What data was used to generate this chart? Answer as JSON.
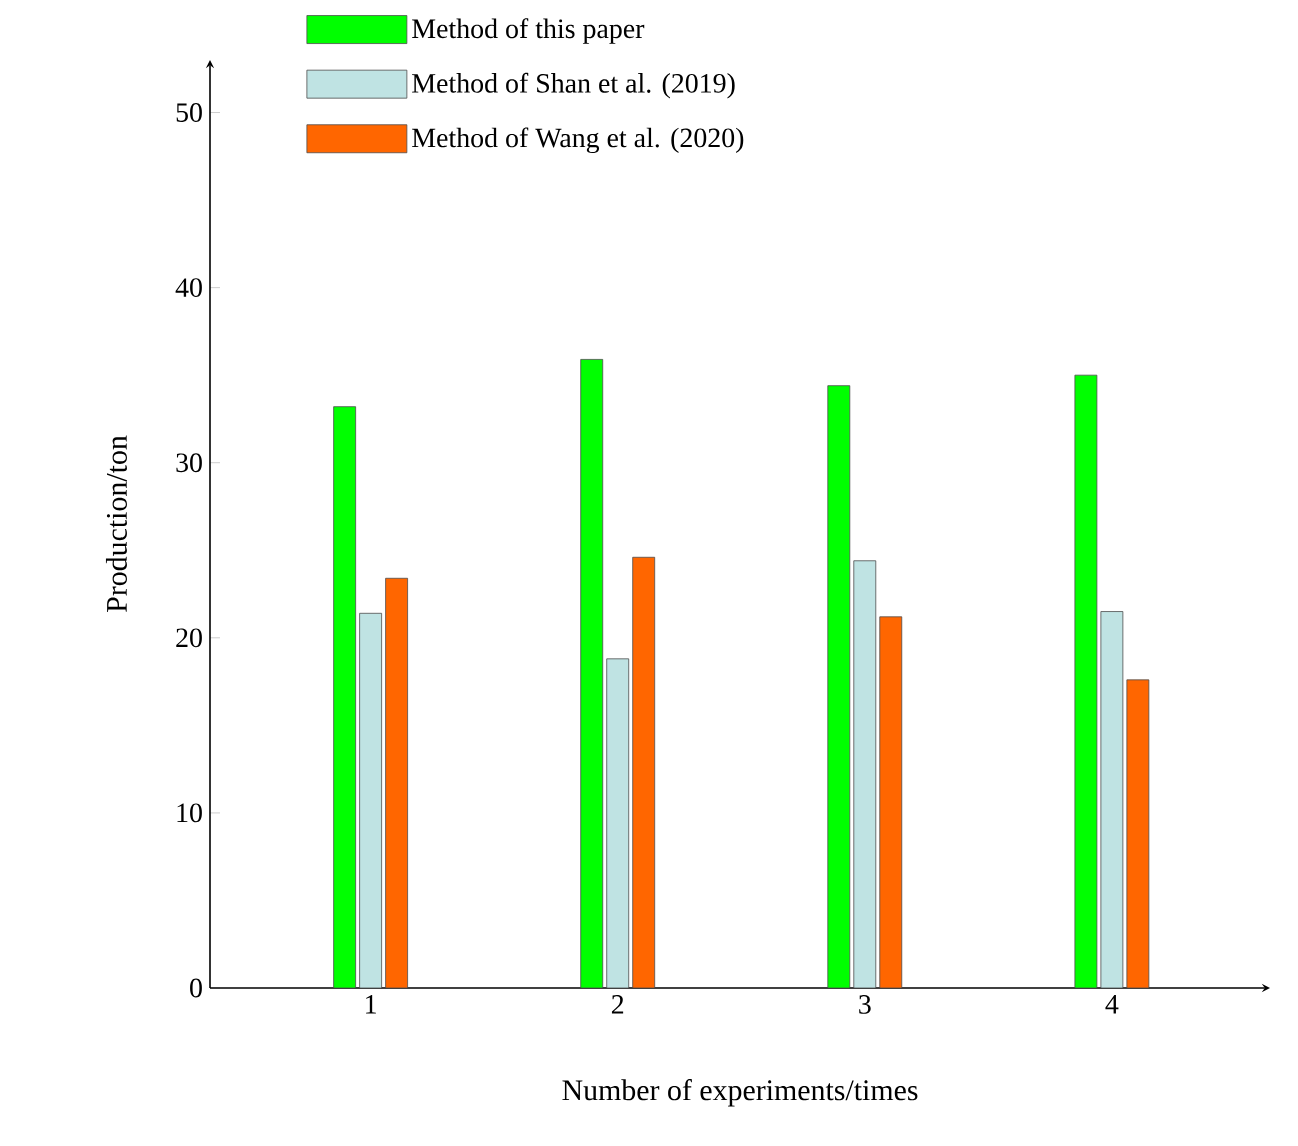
{
  "chart_data": {
    "type": "bar",
    "xlabel": "Number of experiments/times",
    "ylabel": "Production/ton",
    "categories": [
      "1",
      "2",
      "3",
      "4"
    ],
    "series": [
      {
        "name": "Method of this paper",
        "color": "#00ff00",
        "values": [
          33.2,
          35.9,
          34.4,
          35.0
        ]
      },
      {
        "name": "Method of Shan et al. (2019)",
        "color": "#bfe3e3",
        "values": [
          21.4,
          18.8,
          24.4,
          21.5
        ]
      },
      {
        "name": "Method of Wang et al. (2020)",
        "color": "#ff6600",
        "values": [
          23.4,
          24.6,
          21.2,
          17.6
        ]
      }
    ],
    "ylim": [
      0,
      53
    ],
    "yticks": [
      0,
      10,
      20,
      30,
      40,
      50
    ],
    "legend": "top",
    "grid": false
  }
}
